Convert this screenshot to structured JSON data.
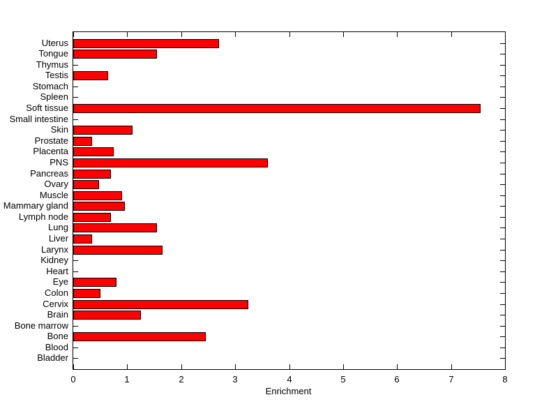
{
  "chart_data": {
    "type": "bar",
    "orientation": "horizontal",
    "title": "",
    "xlabel": "Enrichment",
    "ylabel": "",
    "xlim": [
      0,
      8
    ],
    "xticks": [
      0,
      1,
      2,
      3,
      4,
      5,
      6,
      7,
      8
    ],
    "grid": false,
    "legend": null,
    "bar_color": "#FF0000",
    "bar_edge_color": "#000000",
    "axis_color": "#000000",
    "background_color": "#FFFFFF",
    "categories": [
      "Uterus",
      "Tongue",
      "Thymus",
      "Testis",
      "Stomach",
      "Spleen",
      "Soft tissue",
      "Small intestine",
      "Skin",
      "Prostate",
      "Placenta",
      "PNS",
      "Pancreas",
      "Ovary",
      "Muscle",
      "Mammary gland",
      "Lymph node",
      "Lung",
      "Liver",
      "Larynx",
      "Kidney",
      "Heart",
      "Eye",
      "Colon",
      "Cervix",
      "Brain",
      "Bone marrow",
      "Bone",
      "Blood",
      "Bladder"
    ],
    "values": [
      2.7,
      1.55,
      0,
      0.65,
      0,
      0,
      7.55,
      0,
      1.1,
      0.35,
      0.75,
      3.6,
      0.7,
      0.48,
      0.9,
      0.95,
      0.7,
      1.55,
      0.35,
      1.65,
      0,
      0,
      0.8,
      0.5,
      3.25,
      1.25,
      0,
      2.45,
      0,
      0
    ]
  }
}
